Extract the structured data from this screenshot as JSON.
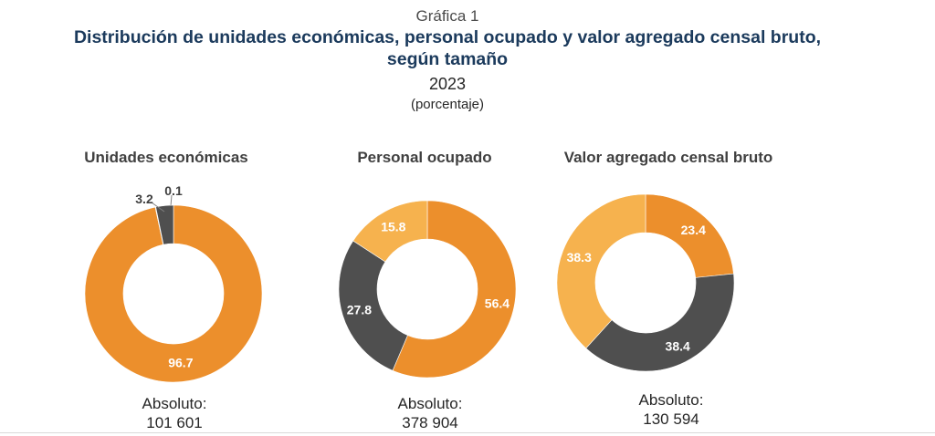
{
  "header": {
    "kicker": "Gráfica 1",
    "title_line1": "Distribución de unidades económicas, personal ocupado y valor agregado censal bruto,",
    "title_line2": "según tamaño",
    "year": "2023",
    "unit": "(porcentaje)"
  },
  "colors": {
    "orange": "#ec8f2c",
    "dark_gray": "#4f4f4f",
    "light_orange": "#f6b24e"
  },
  "chart_data": [
    {
      "type": "pie",
      "title": "Unidades económicas",
      "slices": [
        {
          "value": 96.7,
          "label": "96.7",
          "color": "#ec8f2c"
        },
        {
          "value": 0.1,
          "label": "0.1",
          "color": "#f6b24e"
        },
        {
          "value": 3.2,
          "label": "3.2",
          "color": "#4f4f4f"
        }
      ],
      "absolute_label": "Absoluto:",
      "absolute_value": "101 601"
    },
    {
      "type": "pie",
      "title": "Personal ocupado",
      "slices": [
        {
          "value": 56.4,
          "label": "56.4",
          "color": "#ec8f2c"
        },
        {
          "value": 27.8,
          "label": "27.8",
          "color": "#4f4f4f"
        },
        {
          "value": 15.8,
          "label": "15.8",
          "color": "#f6b24e"
        }
      ],
      "absolute_label": "Absoluto:",
      "absolute_value": "378 904"
    },
    {
      "type": "pie",
      "title": "Valor agregado censal bruto",
      "slices": [
        {
          "value": 23.4,
          "label": "23.4",
          "color": "#ec8f2c"
        },
        {
          "value": 38.4,
          "label": "38.4",
          "color": "#4f4f4f"
        },
        {
          "value": 38.3,
          "label": "38.3",
          "color": "#f6b24e"
        }
      ],
      "absolute_label": "Absoluto:",
      "absolute_value": "130 594"
    }
  ]
}
